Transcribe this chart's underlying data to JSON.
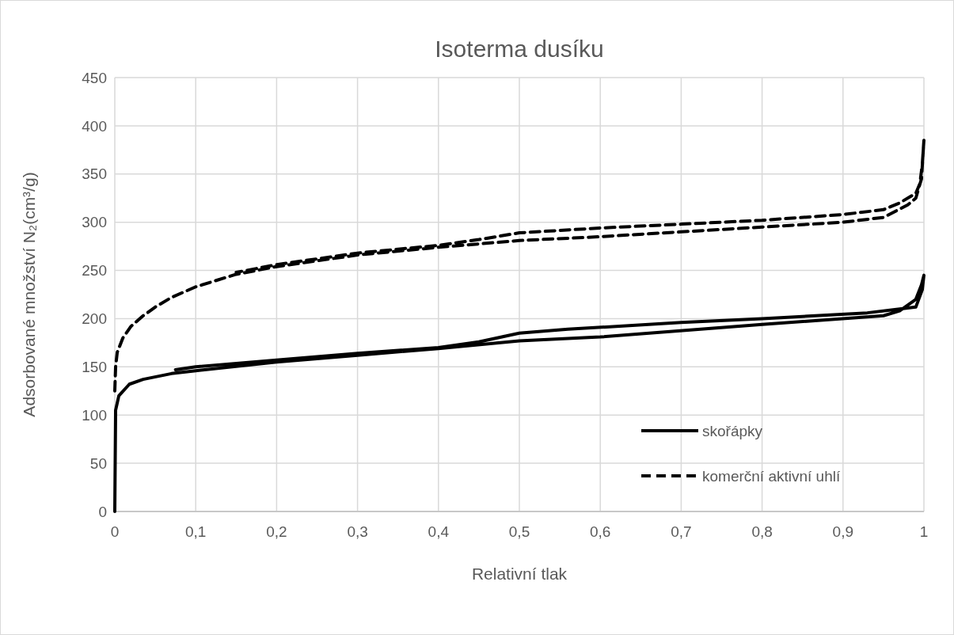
{
  "chart_data": {
    "type": "line",
    "title": "Isoterma dusíku",
    "xlabel": "Relativní tlak",
    "ylabel": "Adsorbované množství N₂(cm³/g)",
    "xlim": [
      0,
      1
    ],
    "ylim": [
      0,
      450
    ],
    "xticks": [
      0,
      {
        "value": 0.1,
        "label": "0,1"
      },
      {
        "value": 0.2,
        "label": "0,2"
      },
      {
        "value": 0.3,
        "label": "0,3"
      },
      {
        "value": 0.4,
        "label": "0,4"
      },
      {
        "value": 0.5,
        "label": "0,5"
      },
      {
        "value": 0.6,
        "label": "0,6"
      },
      {
        "value": 0.7,
        "label": "0,7"
      },
      {
        "value": 0.8,
        "label": "0,8"
      },
      {
        "value": 0.9,
        "label": "0,9"
      },
      1
    ],
    "yticks": [
      0,
      50,
      100,
      150,
      200,
      250,
      300,
      350,
      400,
      450
    ],
    "grid": true,
    "legend": "bottom right",
    "marker": "none",
    "series": [
      {
        "name": "skořápky",
        "color": "#000000",
        "line_style": "solid",
        "x": [
          0,
          0.001,
          0.005,
          0.018,
          0.035,
          0.07,
          0.1,
          0.2,
          0.3,
          0.4,
          0.5,
          0.6,
          0.8,
          0.95,
          0.97,
          0.99,
          0.997,
          1.0,
          0.998,
          0.99,
          0.97,
          0.93,
          0.8,
          0.7,
          0.56,
          0.5,
          0.45,
          0.4,
          0.3,
          0.2,
          0.1,
          0.075
        ],
        "values": [
          0,
          105,
          120,
          132,
          137,
          143,
          146,
          155,
          162,
          169,
          177,
          181,
          194,
          203,
          208,
          220,
          235,
          245,
          230,
          212,
          210,
          206,
          200,
          196,
          189,
          185,
          176,
          170,
          164,
          157,
          150,
          147
        ]
      },
      {
        "name": "komerční aktivní uhlí",
        "color": "#000000",
        "line_style": "dashed",
        "x": [
          0,
          0.001,
          0.003,
          0.01,
          0.02,
          0.035,
          0.05,
          0.07,
          0.1,
          0.15,
          0.2,
          0.3,
          0.4,
          0.5,
          0.6,
          0.7,
          0.8,
          0.9,
          0.95,
          0.98,
          0.99,
          0.997,
          1.0,
          0.998,
          0.995,
          0.99,
          0.97,
          0.95,
          0.9,
          0.8,
          0.7,
          0.6,
          0.5,
          0.45,
          0.4,
          0.3,
          0.2,
          0.15
        ],
        "values": [
          125,
          150,
          165,
          180,
          192,
          203,
          212,
          222,
          233,
          246,
          254,
          266,
          274,
          281,
          285,
          290,
          295,
          300,
          305,
          318,
          325,
          345,
          385,
          360,
          340,
          330,
          320,
          313,
          308,
          302,
          298,
          294,
          289,
          282,
          276,
          268,
          256,
          248
        ]
      }
    ]
  }
}
